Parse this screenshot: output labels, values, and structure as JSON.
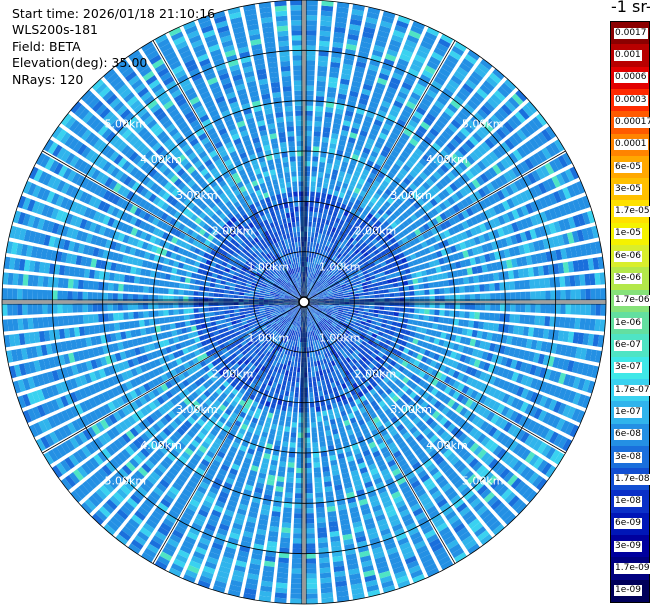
{
  "header": {
    "start_time": "Start time: 2026/01/18 21:10:16",
    "instrument": "WLS200s-181",
    "field": "Field: BETA",
    "elevation": "Elevation(deg): 35.00",
    "nrays": "NRays: 120"
  },
  "chart_data": {
    "type": "heatmap",
    "projection": "polar-ppi",
    "range_rings_km": [
      1,
      2,
      3,
      4,
      5
    ],
    "ring_labels": [
      "1.00km",
      "2.00km",
      "3.00km",
      "4.00km",
      "5.00km"
    ],
    "max_range_km": 6,
    "n_rays": 120,
    "grid": true,
    "dominant_value_range": [
      "3e-08",
      "1e-07"
    ],
    "colorbar": {
      "title": "-1 sr-",
      "placement": "right",
      "ticks": [
        "0.0017",
        "0.001",
        "0.0006",
        "0.0003",
        "0.00017",
        "0.0001",
        "6e-05",
        "3e-05",
        "1.7e-05",
        "1e-05",
        "6e-06",
        "3e-06",
        "1.7e-06",
        "1e-06",
        "6e-07",
        "3e-07",
        "1.7e-07",
        "1e-07",
        "6e-08",
        "3e-08",
        "1.7e-08",
        "1e-08",
        "6e-09",
        "3e-09",
        "1.7e-09",
        "1e-09"
      ],
      "colors": [
        "#8b0000",
        "#b80000",
        "#e20000",
        "#ff2a00",
        "#ff5a00",
        "#ff8400",
        "#ffa800",
        "#ffc000",
        "#ffe100",
        "#f5f200",
        "#d9ee2c",
        "#b4e84a",
        "#86e27a",
        "#63dfa0",
        "#4fe4c4",
        "#3fe8e8",
        "#3ad2f0",
        "#30b4ec",
        "#2490e4",
        "#1a6fdc",
        "#124fd2",
        "#0a30c8",
        "#0016b8",
        "#00009e",
        "#000080",
        "#00005a"
      ]
    }
  }
}
